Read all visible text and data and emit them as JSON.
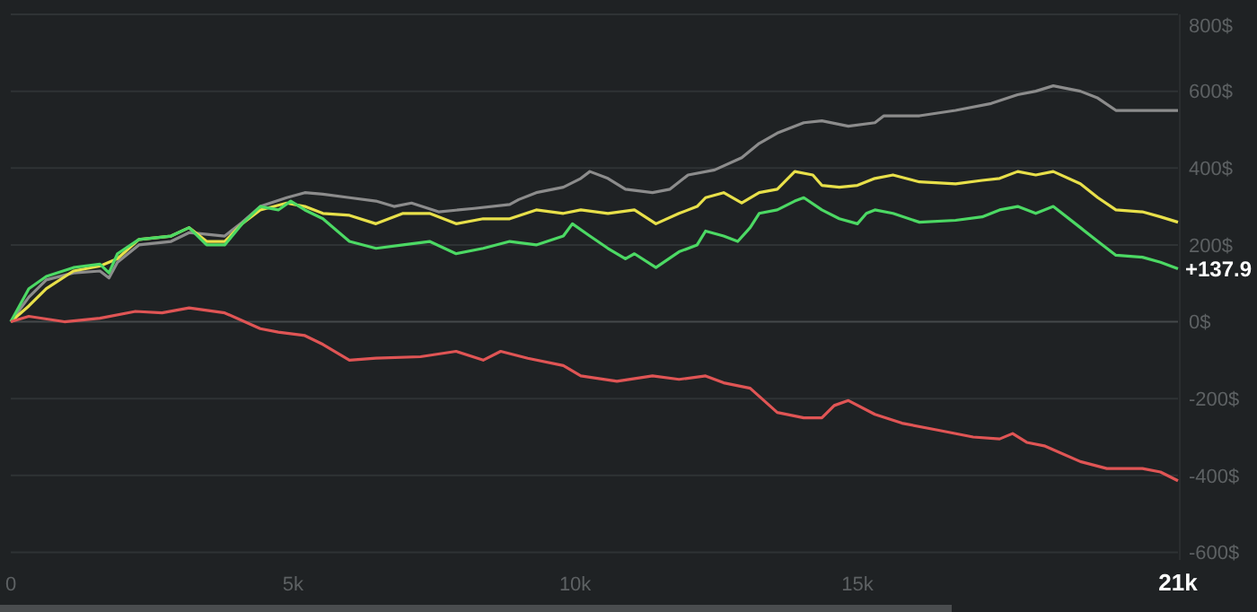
{
  "chart_data": {
    "type": "line",
    "grid": "y",
    "xlim": [
      0,
      20.68
    ],
    "xticks": [
      {
        "value": 0,
        "label": "0"
      },
      {
        "value": 5,
        "label": "5k"
      },
      {
        "value": 10,
        "label": "10k"
      },
      {
        "value": 15,
        "label": "15k"
      },
      {
        "value": 20.68,
        "label": "21k"
      }
    ],
    "ylim": [
      -620,
      800
    ],
    "yticks": [
      {
        "value": -600,
        "label": "-600$"
      },
      {
        "value": -400,
        "label": "-400$"
      },
      {
        "value": -200,
        "label": "-200$"
      },
      {
        "value": 0,
        "label": "0$"
      },
      {
        "value": 200,
        "label": "200$"
      },
      {
        "value": 400,
        "label": "400$"
      },
      {
        "value": 600,
        "label": "600$"
      },
      {
        "value": 800,
        "label": "800$"
      }
    ],
    "annotations": [
      {
        "text": "+137.9",
        "x": 20.68,
        "y": 137.9
      }
    ],
    "series": [
      {
        "color": "#8c8c8c",
        "x": [
          0,
          0.32,
          0.63,
          1.11,
          1.58,
          1.74,
          1.89,
          2.27,
          2.84,
          3.16,
          3.79,
          4.1,
          4.42,
          4.89,
          5.21,
          5.53,
          6.0,
          6.47,
          6.79,
          7.1,
          7.58,
          8.21,
          8.84,
          9.0,
          9.31,
          9.79,
          10.1,
          10.26,
          10.58,
          10.89,
          11.37,
          11.68,
          12.0,
          12.47,
          12.95,
          13.26,
          13.58,
          14.05,
          14.37,
          14.84,
          15.31,
          15.47,
          16.1,
          16.74,
          17.37,
          17.84,
          18.16,
          18.47,
          18.95,
          19.26,
          19.58,
          20.05,
          20.68
        ],
        "values": [
          0,
          64,
          109,
          127,
          132,
          114,
          155,
          200,
          209,
          232,
          223,
          259,
          300,
          323,
          336,
          332,
          323,
          314,
          300,
          309,
          286,
          295,
          305,
          318,
          336,
          350,
          373,
          391,
          373,
          345,
          336,
          345,
          382,
          395,
          427,
          464,
          491,
          518,
          523,
          509,
          518,
          536,
          536,
          550,
          568,
          591,
          600,
          614,
          600,
          582,
          550,
          550,
          550
        ]
      },
      {
        "color": "#e8e04a",
        "x": [
          0,
          0.32,
          0.63,
          1.11,
          1.58,
          1.89,
          2.27,
          2.84,
          3.16,
          3.47,
          3.79,
          4.1,
          4.42,
          4.89,
          5.21,
          5.53,
          6.0,
          6.47,
          6.95,
          7.42,
          7.89,
          8.37,
          8.84,
          9.31,
          9.79,
          10.1,
          10.58,
          11.05,
          11.43,
          11.84,
          12.16,
          12.31,
          12.63,
          12.95,
          13.26,
          13.58,
          13.89,
          14.21,
          14.37,
          14.68,
          15.0,
          15.31,
          15.63,
          16.1,
          16.74,
          17.21,
          17.52,
          17.84,
          18.16,
          18.47,
          18.95,
          19.26,
          19.58,
          20.05,
          20.37,
          20.68
        ],
        "values": [
          0,
          41,
          86,
          132,
          145,
          164,
          214,
          223,
          245,
          209,
          209,
          255,
          291,
          309,
          300,
          282,
          277,
          255,
          282,
          282,
          255,
          268,
          268,
          291,
          282,
          291,
          282,
          291,
          255,
          282,
          300,
          323,
          336,
          309,
          336,
          345,
          391,
          382,
          355,
          350,
          355,
          373,
          382,
          364,
          359,
          368,
          373,
          391,
          382,
          391,
          359,
          323,
          291,
          286,
          273,
          259
        ]
      },
      {
        "color": "#4cd964",
        "x": [
          0,
          0.32,
          0.63,
          1.11,
          1.58,
          1.74,
          1.89,
          2.27,
          2.84,
          3.16,
          3.47,
          3.79,
          4.1,
          4.42,
          4.74,
          4.96,
          5.21,
          5.53,
          6.0,
          6.47,
          6.95,
          7.42,
          7.89,
          8.37,
          8.84,
          9.31,
          9.79,
          9.95,
          10.26,
          10.58,
          10.89,
          11.05,
          11.43,
          11.84,
          12.16,
          12.31,
          12.63,
          12.88,
          13.1,
          13.26,
          13.58,
          13.89,
          14.05,
          14.37,
          14.68,
          15.0,
          15.16,
          15.31,
          15.63,
          16.1,
          16.74,
          17.21,
          17.52,
          17.84,
          18.16,
          18.47,
          18.95,
          19.26,
          19.58,
          20.05,
          20.37,
          20.68
        ],
        "values": [
          0,
          86,
          118,
          141,
          150,
          127,
          177,
          214,
          223,
          245,
          200,
          200,
          255,
          300,
          291,
          314,
          291,
          268,
          209,
          191,
          200,
          209,
          177,
          191,
          209,
          200,
          223,
          255,
          223,
          191,
          164,
          177,
          141,
          182,
          200,
          236,
          223,
          209,
          245,
          282,
          291,
          314,
          323,
          291,
          268,
          255,
          282,
          291,
          282,
          259,
          264,
          273,
          291,
          300,
          282,
          300,
          245,
          209,
          173,
          168,
          155,
          138
        ]
      },
      {
        "color": "#e05555",
        "x": [
          0,
          0.32,
          0.95,
          1.58,
          2.21,
          2.68,
          3.16,
          3.79,
          4.42,
          4.74,
          5.21,
          5.53,
          6.0,
          6.47,
          7.26,
          7.89,
          8.37,
          8.68,
          9.16,
          9.79,
          10.1,
          10.74,
          11.37,
          11.84,
          12.31,
          12.63,
          13.1,
          13.58,
          14.05,
          14.37,
          14.59,
          14.84,
          15.31,
          15.79,
          16.42,
          17.05,
          17.52,
          17.75,
          18.0,
          18.31,
          18.95,
          19.42,
          20.05,
          20.37,
          20.68
        ],
        "values": [
          0,
          14,
          0,
          9,
          27,
          23,
          36,
          23,
          -18,
          -27,
          -36,
          -59,
          -100,
          -95,
          -91,
          -77,
          -100,
          -77,
          -95,
          -114,
          -141,
          -155,
          -141,
          -150,
          -141,
          -159,
          -173,
          -236,
          -250,
          -250,
          -218,
          -205,
          -241,
          -264,
          -282,
          -300,
          -305,
          -291,
          -314,
          -323,
          -364,
          -382,
          -382,
          -391,
          -414
        ]
      }
    ]
  }
}
